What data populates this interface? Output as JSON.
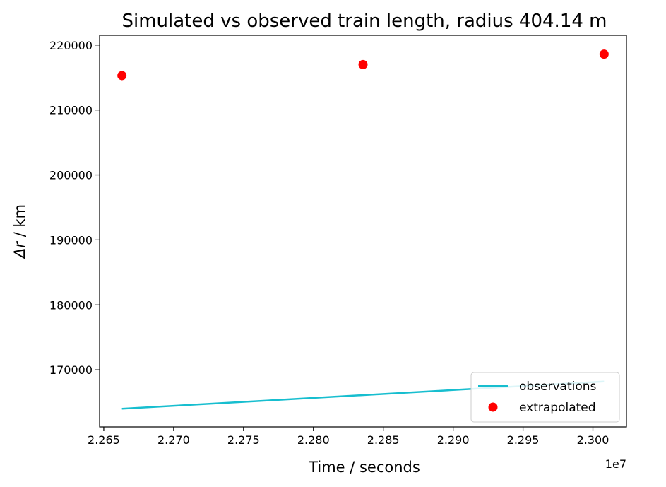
{
  "chart_data": {
    "type": "scatter",
    "title": "Simulated vs observed train length, radius 404.14 m",
    "xlabel": "Time / seconds",
    "ylabel_symbol": "Δr",
    "ylabel_unit": " / km",
    "x_scale_note": "1e7",
    "xlim": [
      2.2647,
      2.3024
    ],
    "ylim": [
      161200,
      221500
    ],
    "xticks": [
      2.265,
      2.27,
      2.275,
      2.28,
      2.285,
      2.29,
      2.295,
      2.3
    ],
    "xtick_labels": [
      "2.265",
      "2.270",
      "2.275",
      "2.280",
      "2.285",
      "2.290",
      "2.295",
      "2.300"
    ],
    "yticks": [
      170000,
      180000,
      190000,
      200000,
      210000,
      220000
    ],
    "ytick_labels": [
      "170000",
      "180000",
      "190000",
      "200000",
      "210000",
      "220000"
    ],
    "grid": false,
    "legend_position": "lower-right",
    "series": [
      {
        "name": "observations",
        "kind": "line",
        "color": "#17becf",
        "x": [
          2.2663,
          2.3008
        ],
        "y": [
          164000,
          168200
        ]
      },
      {
        "name": "extrapolated",
        "kind": "marker",
        "color": "#ff0000",
        "x": [
          2.2663,
          2.28355,
          2.3008
        ],
        "y": [
          215300,
          217000,
          218600
        ]
      }
    ]
  }
}
